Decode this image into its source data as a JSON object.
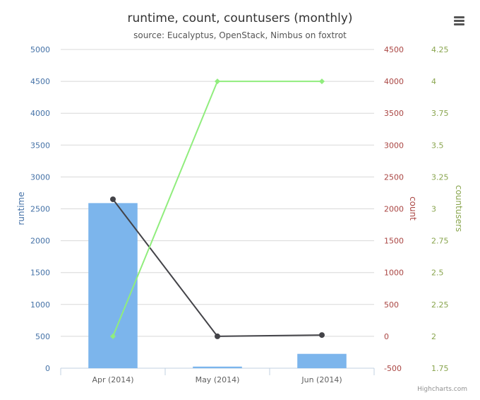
{
  "title": "runtime, count, countusers (monthly)",
  "subtitle": "source: Eucalyptus, OpenStack, Nimbus on foxtrot",
  "credits": "Highcharts.com",
  "menu": {
    "icon": "hamburger-menu-icon"
  },
  "colors": {
    "runtime": "#7cb5ec",
    "count": "#434348",
    "countusers": "#90ed7d",
    "runtime_axis": "#4572a7",
    "count_axis": "#aa4643",
    "countusers_axis": "#89a54e"
  },
  "chart_data": {
    "type": "bar",
    "categories": [
      "Apr (2014)",
      "May (2014)",
      "Jun (2014)"
    ],
    "xlabel": "",
    "grid": true,
    "series": [
      {
        "name": "runtime",
        "type": "bar",
        "axis": "runtime",
        "values": [
          2590,
          25,
          225
        ]
      },
      {
        "name": "count",
        "type": "line",
        "axis": "count",
        "values": [
          2150,
          0,
          20
        ]
      },
      {
        "name": "countusers",
        "type": "line",
        "axis": "countusers",
        "values": [
          2,
          4,
          4
        ]
      }
    ],
    "axes": {
      "runtime": {
        "label": "runtime",
        "position": "left",
        "ylim": [
          0,
          5000
        ],
        "ticks": [
          "0",
          "500",
          "1000",
          "1500",
          "2000",
          "2500",
          "3000",
          "3500",
          "4000",
          "4500",
          "5000"
        ]
      },
      "count": {
        "label": "count",
        "position": "right",
        "ylim": [
          -500,
          4500
        ],
        "ticks": [
          "-500",
          "0",
          "500",
          "1000",
          "1500",
          "2000",
          "2500",
          "3000",
          "3500",
          "4000",
          "4500"
        ]
      },
      "countusers": {
        "label": "countusers",
        "position": "right",
        "ylim": [
          1.75,
          4.25
        ],
        "ticks": [
          "1.75",
          "2",
          "2.25",
          "2.5",
          "2.75",
          "3",
          "3.25",
          "3.5",
          "3.75",
          "4",
          "4.25"
        ]
      }
    }
  }
}
